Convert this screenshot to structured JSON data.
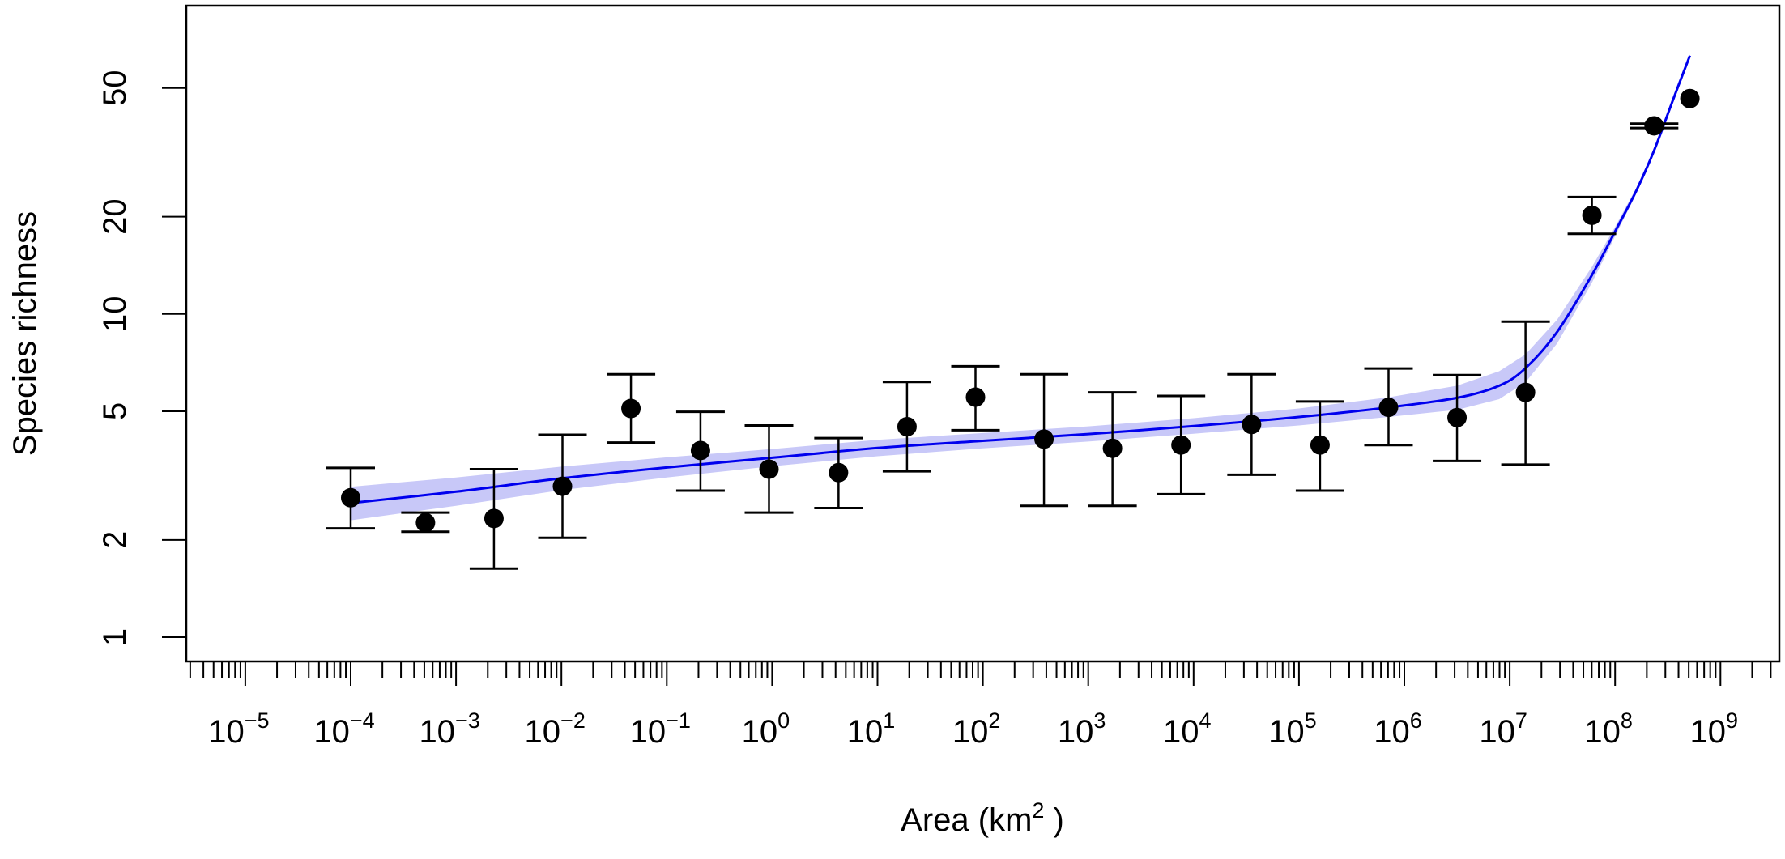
{
  "chart_data": {
    "type": "scatter",
    "title": "",
    "xlabel": "Area (km",
    "xlabel_sup": "2",
    "xlabel_close": " )",
    "ylabel": "Species richness",
    "x_scale": "log10",
    "y_scale": "log10",
    "xlim_log10": [
      -5.6,
      9.5
    ],
    "ylim": [
      0.9,
      75
    ],
    "y_ticks": [
      1,
      2,
      5,
      10,
      20,
      50
    ],
    "y_tick_labels": [
      "1",
      "2",
      "5",
      "10",
      "20",
      "50"
    ],
    "x_tick_exponents": [
      -5,
      -4,
      -3,
      -2,
      -1,
      0,
      1,
      2,
      3,
      4,
      5,
      6,
      7,
      8,
      9
    ],
    "x_tick_labels": [
      {
        "base": "10",
        "exp": "−5"
      },
      {
        "base": "10",
        "exp": "−4"
      },
      {
        "base": "10",
        "exp": "−3"
      },
      {
        "base": "10",
        "exp": "−2"
      },
      {
        "base": "10",
        "exp": "−1"
      },
      {
        "base": "10",
        "exp": "0"
      },
      {
        "base": "10",
        "exp": "1"
      },
      {
        "base": "10",
        "exp": "2"
      },
      {
        "base": "10",
        "exp": "3"
      },
      {
        "base": "10",
        "exp": "4"
      },
      {
        "base": "10",
        "exp": "5"
      },
      {
        "base": "10",
        "exp": "6"
      },
      {
        "base": "10",
        "exp": "7"
      },
      {
        "base": "10",
        "exp": "8"
      },
      {
        "base": "10",
        "exp": "9"
      }
    ],
    "grid": false,
    "legend": "none",
    "points": [
      {
        "log10_area": -4.0,
        "richness": 2.7,
        "lower": 2.17,
        "upper": 3.34
      },
      {
        "log10_area": -3.29,
        "richness": 2.26,
        "lower": 2.12,
        "upper": 2.43
      },
      {
        "log10_area": -2.64,
        "richness": 2.33,
        "lower": 1.63,
        "upper": 3.31
      },
      {
        "log10_area": -1.99,
        "richness": 2.93,
        "lower": 2.03,
        "upper": 4.23
      },
      {
        "log10_area": -1.34,
        "richness": 5.1,
        "lower": 4.0,
        "upper": 6.51
      },
      {
        "log10_area": -0.68,
        "richness": 3.78,
        "lower": 2.84,
        "upper": 4.98
      },
      {
        "log10_area": -0.03,
        "richness": 3.31,
        "lower": 2.43,
        "upper": 4.52
      },
      {
        "log10_area": 0.63,
        "richness": 3.23,
        "lower": 2.51,
        "upper": 4.13
      },
      {
        "log10_area": 1.28,
        "richness": 4.48,
        "lower": 3.26,
        "upper": 6.16
      },
      {
        "log10_area": 1.93,
        "richness": 5.53,
        "lower": 4.37,
        "upper": 6.89
      },
      {
        "log10_area": 2.58,
        "richness": 4.1,
        "lower": 2.55,
        "upper": 6.51
      },
      {
        "log10_area": 3.23,
        "richness": 3.84,
        "lower": 2.55,
        "upper": 5.72
      },
      {
        "log10_area": 3.88,
        "richness": 3.93,
        "lower": 2.77,
        "upper": 5.58
      },
      {
        "log10_area": 4.55,
        "richness": 4.55,
        "lower": 3.18,
        "upper": 6.51
      },
      {
        "log10_area": 5.2,
        "richness": 3.93,
        "lower": 2.84,
        "upper": 5.36
      },
      {
        "log10_area": 5.85,
        "richness": 5.14,
        "lower": 3.93,
        "upper": 6.78
      },
      {
        "log10_area": 6.5,
        "richness": 4.78,
        "lower": 3.51,
        "upper": 6.47
      },
      {
        "log10_area": 7.15,
        "richness": 5.72,
        "lower": 3.42,
        "upper": 9.47
      },
      {
        "log10_area": 7.78,
        "richness": 20.2,
        "lower": 17.7,
        "upper": 23.0
      },
      {
        "log10_area": 8.37,
        "richness": 38.2,
        "lower": 37.6,
        "upper": 38.8
      },
      {
        "log10_area": 8.71,
        "richness": 46.4,
        "lower": null,
        "upper": null
      }
    ],
    "fit": {
      "color": "#0000ee",
      "band_color": "#c8c8f8",
      "log10_area": [
        -4.0,
        -3.0,
        -2.0,
        -1.0,
        0.0,
        1.0,
        2.0,
        3.0,
        4.0,
        5.0,
        5.85,
        6.5,
        6.9,
        7.15,
        7.45,
        7.78,
        8.0,
        8.2,
        8.37,
        8.55,
        8.71
      ],
      "richness": [
        2.6,
        2.82,
        3.1,
        3.35,
        3.59,
        3.85,
        4.05,
        4.25,
        4.5,
        4.8,
        5.14,
        5.5,
        6.0,
        6.8,
        8.8,
        13.2,
        18.0,
        24.0,
        32.0,
        46.0,
        63.0
      ],
      "band_lower": [
        2.3,
        2.55,
        2.85,
        3.12,
        3.38,
        3.63,
        3.84,
        4.03,
        4.26,
        4.52,
        4.8,
        5.05,
        5.45,
        6.15,
        8.1,
        12.5,
        17.4,
        23.5,
        31.5,
        45.5,
        62.5
      ],
      "band_upper": [
        2.92,
        3.12,
        3.37,
        3.6,
        3.82,
        4.08,
        4.28,
        4.49,
        4.76,
        5.1,
        5.52,
        6.0,
        6.65,
        7.5,
        9.6,
        14.0,
        18.6,
        24.5,
        32.5,
        46.5,
        63.5
      ]
    }
  }
}
